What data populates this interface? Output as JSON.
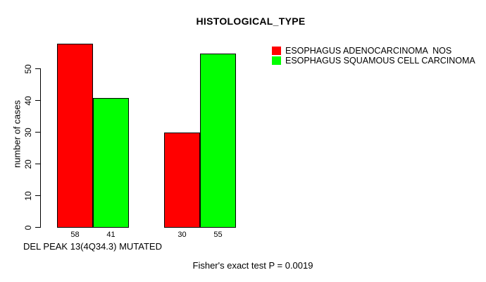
{
  "title": "HISTOLOGICAL_TYPE",
  "footer": {
    "stat_text": "Fisher's exact test P = 0.0019"
  },
  "legend": {
    "items": [
      {
        "label": "ESOPHAGUS ADENOCARCINOMA  NOS",
        "color": "#ff0000"
      },
      {
        "label": "ESOPHAGUS SQUAMOUS CELL CARCINOMA",
        "color": "#00ff00"
      }
    ]
  },
  "chart_data": {
    "type": "bar",
    "title": "HISTOLOGICAL_TYPE",
    "xlabel": "DEL PEAK 13(4Q34.3) MUTATED",
    "ylabel": "number of cases",
    "categories": [
      "",
      ""
    ],
    "series": [
      {
        "name": "ESOPHAGUS ADENOCARCINOMA  NOS",
        "color": "#ff0000",
        "values": [
          58,
          30
        ]
      },
      {
        "name": "ESOPHAGUS SQUAMOUS CELL CARCINOMA",
        "color": "#00ff00",
        "values": [
          41,
          55
        ]
      }
    ],
    "bar_value_labels": [
      [
        58,
        41
      ],
      [
        30,
        55
      ]
    ],
    "yticks": [
      0,
      10,
      20,
      30,
      40,
      50
    ],
    "ylim": [
      0,
      58
    ],
    "grid": false,
    "legend_position": "top-right",
    "annotation": "Fisher's exact test P = 0.0019"
  }
}
